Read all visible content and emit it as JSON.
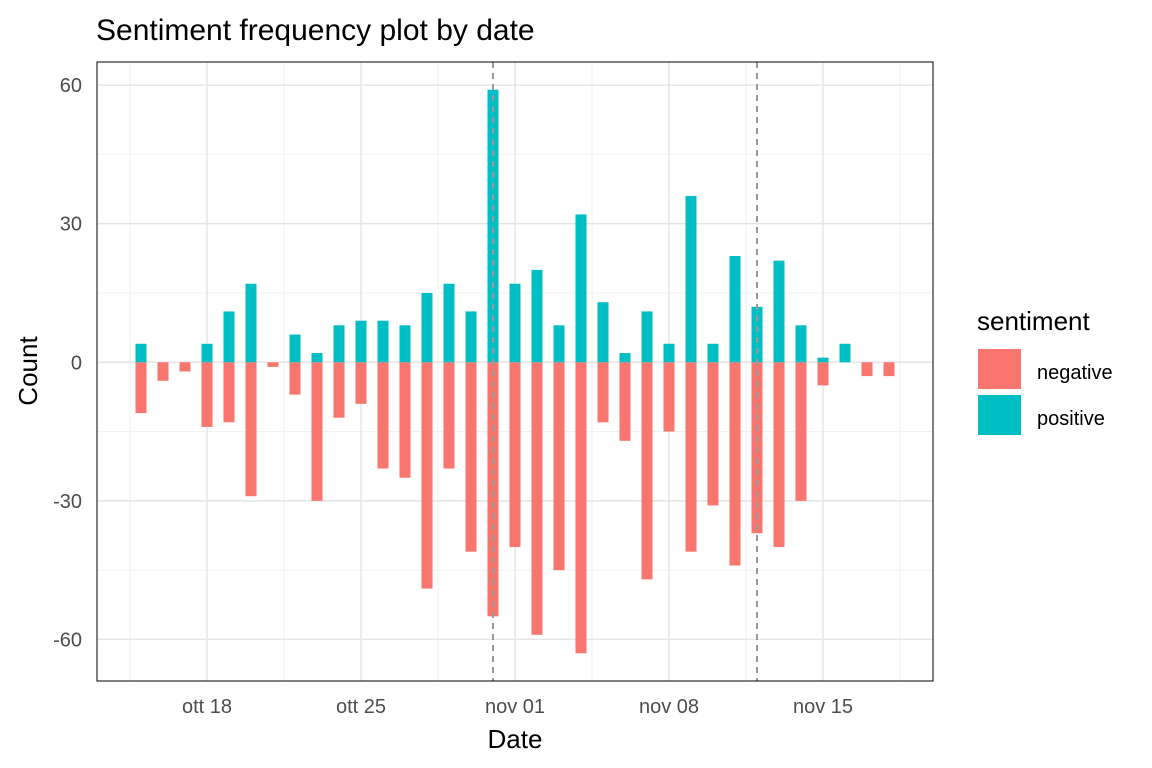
{
  "chart_data": {
    "type": "bar",
    "title": "Sentiment frequency plot by date",
    "xlabel": "Date",
    "ylabel": "Count",
    "x": [
      "2020-10-15",
      "2020-10-16",
      "2020-10-17",
      "2020-10-18",
      "2020-10-19",
      "2020-10-20",
      "2020-10-21",
      "2020-10-22",
      "2020-10-23",
      "2020-10-24",
      "2020-10-25",
      "2020-10-26",
      "2020-10-27",
      "2020-10-28",
      "2020-10-29",
      "2020-10-30",
      "2020-10-31",
      "2020-11-01",
      "2020-11-02",
      "2020-11-03",
      "2020-11-04",
      "2020-11-05",
      "2020-11-06",
      "2020-11-07",
      "2020-11-08",
      "2020-11-09",
      "2020-11-10",
      "2020-11-11",
      "2020-11-12",
      "2020-11-13",
      "2020-11-14",
      "2020-11-15",
      "2020-11-16",
      "2020-11-17",
      "2020-11-18",
      "2020-11-19"
    ],
    "series": [
      {
        "name": "negative",
        "color": "#F8766D",
        "values": [
          -11,
          -4,
          -2,
          -14,
          -13,
          -29,
          -1,
          -7,
          -30,
          -12,
          -9,
          -23,
          -25,
          -49,
          -23,
          -41,
          -55,
          -40,
          -59,
          -45,
          -63,
          -13,
          -17,
          -47,
          -15,
          -41,
          -31,
          -44,
          -37,
          -40,
          -30,
          -5,
          0,
          -3,
          -3,
          0
        ]
      },
      {
        "name": "positive",
        "color": "#00BFC4",
        "values": [
          4,
          0,
          0,
          4,
          11,
          17,
          0,
          6,
          2,
          8,
          9,
          9,
          8,
          15,
          17,
          11,
          59,
          17,
          20,
          8,
          32,
          13,
          2,
          11,
          4,
          36,
          4,
          23,
          12,
          22,
          8,
          1,
          4,
          0,
          0,
          0
        ]
      }
    ],
    "ylim": [
      -69,
      65
    ],
    "yticks": [
      -60,
      -30,
      0,
      30,
      60
    ],
    "ytick_labels": [
      "-60",
      "-30",
      "0",
      "30",
      "60"
    ],
    "xlim": [
      "2020-10-13",
      "2020-11-20"
    ],
    "xticks": [
      "2020-10-18",
      "2020-10-25",
      "2020-11-01",
      "2020-11-08",
      "2020-11-15"
    ],
    "xtick_labels": [
      "ott 18",
      "ott 25",
      "nov 01",
      "nov 08",
      "nov 15"
    ],
    "reference_lines": [
      "2020-10-31",
      "2020-11-12"
    ],
    "grid": true,
    "legend": {
      "title": "sentiment",
      "position": "right",
      "entries": [
        "negative",
        "positive"
      ]
    }
  }
}
